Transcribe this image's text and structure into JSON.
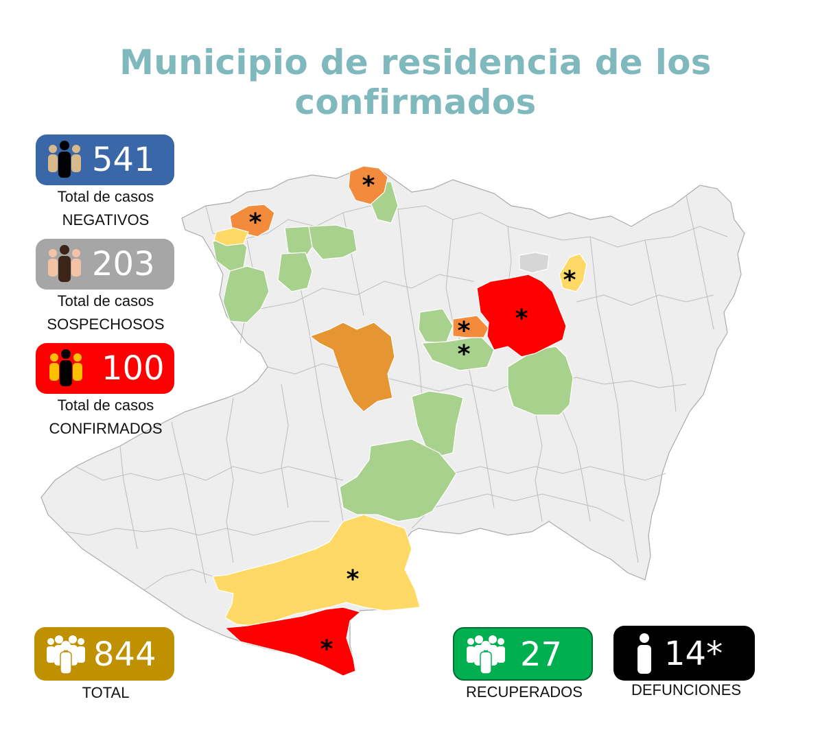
{
  "title": "Municipio de residencia de los confirmados",
  "colors": {
    "title": "#80b9bd",
    "negativos": "#3a67a8",
    "sospechosos": "#a6a6a6",
    "confirmados": "#ff0000",
    "total": "#bf9000",
    "recuperados": "#00b050",
    "defunciones": "#000000",
    "map_default": "#eeeeee",
    "map_green": "#a9d18e",
    "map_orange": "#e69533",
    "map_light_orange": "#f28c3c",
    "map_yellow": "#ffd966",
    "map_red": "#ff0000",
    "map_gray": "#d6d6d6"
  },
  "stats": {
    "negativos": {
      "value": "541",
      "line1": "Total de casos",
      "line2": "NEGATIVOS",
      "icon": "people-icon"
    },
    "sospechosos": {
      "value": "203",
      "line1": "Total de casos",
      "line2": "SOSPECHOSOS",
      "icon": "people-icon"
    },
    "confirmados": {
      "value": "100",
      "line1": "Total de casos",
      "line2": "CONFIRMADOS",
      "icon": "people-icon"
    },
    "total": {
      "value": "844",
      "label": "TOTAL",
      "icon": "group-icon"
    },
    "recuperados": {
      "value": "27",
      "label": "RECUPERADOS",
      "icon": "group-icon"
    },
    "defunciones": {
      "value": "14*",
      "label": "DEFUNCIONES",
      "icon": "person-icon"
    }
  },
  "map": {
    "marker_symbol": "*"
  }
}
